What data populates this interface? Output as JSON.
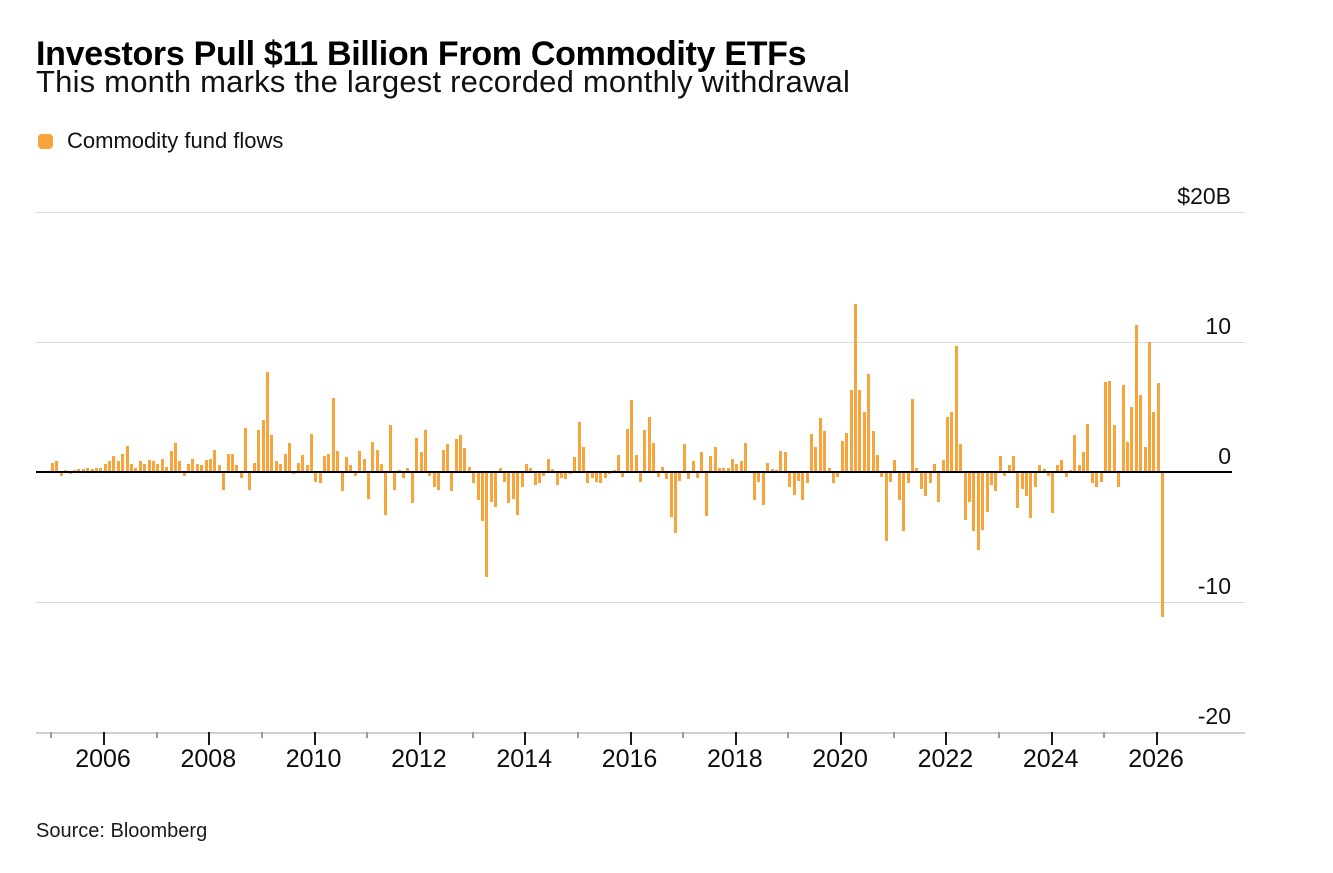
{
  "header": {
    "title": "Investors Pull $11 Billion From Commodity ETFs",
    "subtitle": "This month marks the largest recorded monthly withdrawal"
  },
  "legend": {
    "label": "Commodity fund flows",
    "swatch_color": "#F7A43C"
  },
  "footer": {
    "source": "Source: Bloomberg"
  },
  "chart_data": {
    "type": "bar",
    "title": "Investors Pull $11 Billion From Commodity ETFs",
    "subtitle": "This month marks the largest recorded monthly withdrawal",
    "unit": "USD billions",
    "bar_color": "#F7A43C",
    "grid": "horizontal",
    "legend_position": "top-left",
    "ylabel": "",
    "xlabel": "",
    "ylim": [
      -22,
      22
    ],
    "y_axis": {
      "side": "right",
      "ticks": [
        {
          "label": "$20B",
          "value": 20
        },
        {
          "label": "10",
          "value": 10
        },
        {
          "label": "0",
          "value": 0
        },
        {
          "label": "-10",
          "value": -10
        },
        {
          "label": "-20",
          "value": -20
        }
      ]
    },
    "x_axis": {
      "frequency": "monthly",
      "start": "2005-01",
      "end": "2026-02",
      "major_tick_years": [
        2006,
        2008,
        2010,
        2012,
        2014,
        2016,
        2018,
        2020,
        2022,
        2024,
        2026
      ],
      "minor_tick_years": [
        2005,
        2007,
        2009,
        2011,
        2013,
        2015,
        2017,
        2019,
        2021,
        2023,
        2025
      ]
    },
    "series": [
      {
        "name": "Commodity fund flows",
        "start": "2005-01",
        "monthly_values": [
          0.7,
          0.8,
          -0.3,
          0.1,
          -0.2,
          0.1,
          0.2,
          0.2,
          0.3,
          0.2,
          0.3,
          0.3,
          0.6,
          0.8,
          1.2,
          0.8,
          1.4,
          2.0,
          0.6,
          0.3,
          0.8,
          0.6,
          0.9,
          0.8,
          0.6,
          1.0,
          0.4,
          1.6,
          2.2,
          0.8,
          -0.3,
          0.6,
          1.0,
          0.6,
          0.5,
          0.9,
          1.0,
          1.7,
          0.5,
          -1.4,
          1.4,
          1.4,
          0.5,
          -0.5,
          3.4,
          -1.4,
          0.7,
          3.2,
          4.0,
          7.7,
          2.8,
          0.8,
          0.6,
          1.4,
          2.2,
          -0.2,
          0.7,
          1.3,
          0.5,
          2.9,
          -0.8,
          -0.9,
          1.2,
          1.4,
          5.7,
          1.6,
          -1.5,
          1.1,
          0.5,
          -0.3,
          1.6,
          1.0,
          -2.1,
          2.3,
          1.7,
          0.6,
          -3.3,
          3.6,
          -1.4,
          0.1,
          -0.5,
          0.3,
          -2.4,
          2.6,
          1.5,
          3.2,
          -0.3,
          -1.2,
          -1.4,
          1.7,
          2.1,
          -1.5,
          2.5,
          2.8,
          1.8,
          0.4,
          -0.9,
          -2.2,
          -3.8,
          -8.1,
          -2.3,
          -2.7,
          0.3,
          -0.8,
          -2.4,
          -2.1,
          -3.3,
          -1.2,
          0.6,
          0.3,
          -1.0,
          -0.9,
          -0.3,
          1.0,
          0.2,
          -1.0,
          -0.5,
          -0.6,
          -0.2,
          1.1,
          3.8,
          1.9,
          -0.9,
          -0.5,
          -0.8,
          -0.9,
          -0.5,
          -0.2,
          0.1,
          1.3,
          -0.4,
          3.3,
          5.5,
          1.3,
          -0.8,
          3.2,
          4.2,
          2.2,
          -0.4,
          0.4,
          -0.6,
          -3.5,
          -4.7,
          -0.7,
          2.1,
          -0.6,
          0.8,
          -0.5,
          1.5,
          -3.4,
          1.2,
          1.9,
          0.3,
          0.3,
          0.3,
          1.0,
          0.6,
          0.8,
          2.2,
          -0.1,
          -2.2,
          -0.8,
          -2.6,
          0.7,
          0.2,
          0.1,
          1.6,
          1.5,
          -1.2,
          -1.8,
          -0.7,
          -2.2,
          -0.9,
          2.9,
          1.9,
          4.1,
          3.1,
          0.3,
          -0.9,
          -0.4,
          2.4,
          3.0,
          6.3,
          12.9,
          6.3,
          4.6,
          7.5,
          3.1,
          1.3,
          -0.4,
          -5.3,
          -0.8,
          0.9,
          -2.2,
          -4.6,
          -0.9,
          5.6,
          0.3,
          -1.3,
          -1.9,
          -0.9,
          0.6,
          -2.3,
          0.9,
          4.2,
          4.6,
          9.7,
          2.1,
          -3.7,
          -2.3,
          -4.6,
          -6.0,
          -4.5,
          -3.1,
          -1.0,
          -1.5,
          1.2,
          -0.3,
          0.5,
          1.2,
          -2.8,
          -1.3,
          -1.9,
          -3.6,
          -1.2,
          0.5,
          0.2,
          -0.3,
          -3.2,
          0.5,
          0.9,
          -0.4,
          0.1,
          2.8,
          0.5,
          1.5,
          3.7,
          -0.9,
          -1.2,
          -0.8,
          6.9,
          7.0,
          3.6,
          -1.2,
          6.7,
          2.3,
          5.0,
          11.3,
          5.9,
          1.9,
          10.0,
          4.6,
          6.8,
          -11.2
        ]
      }
    ]
  }
}
